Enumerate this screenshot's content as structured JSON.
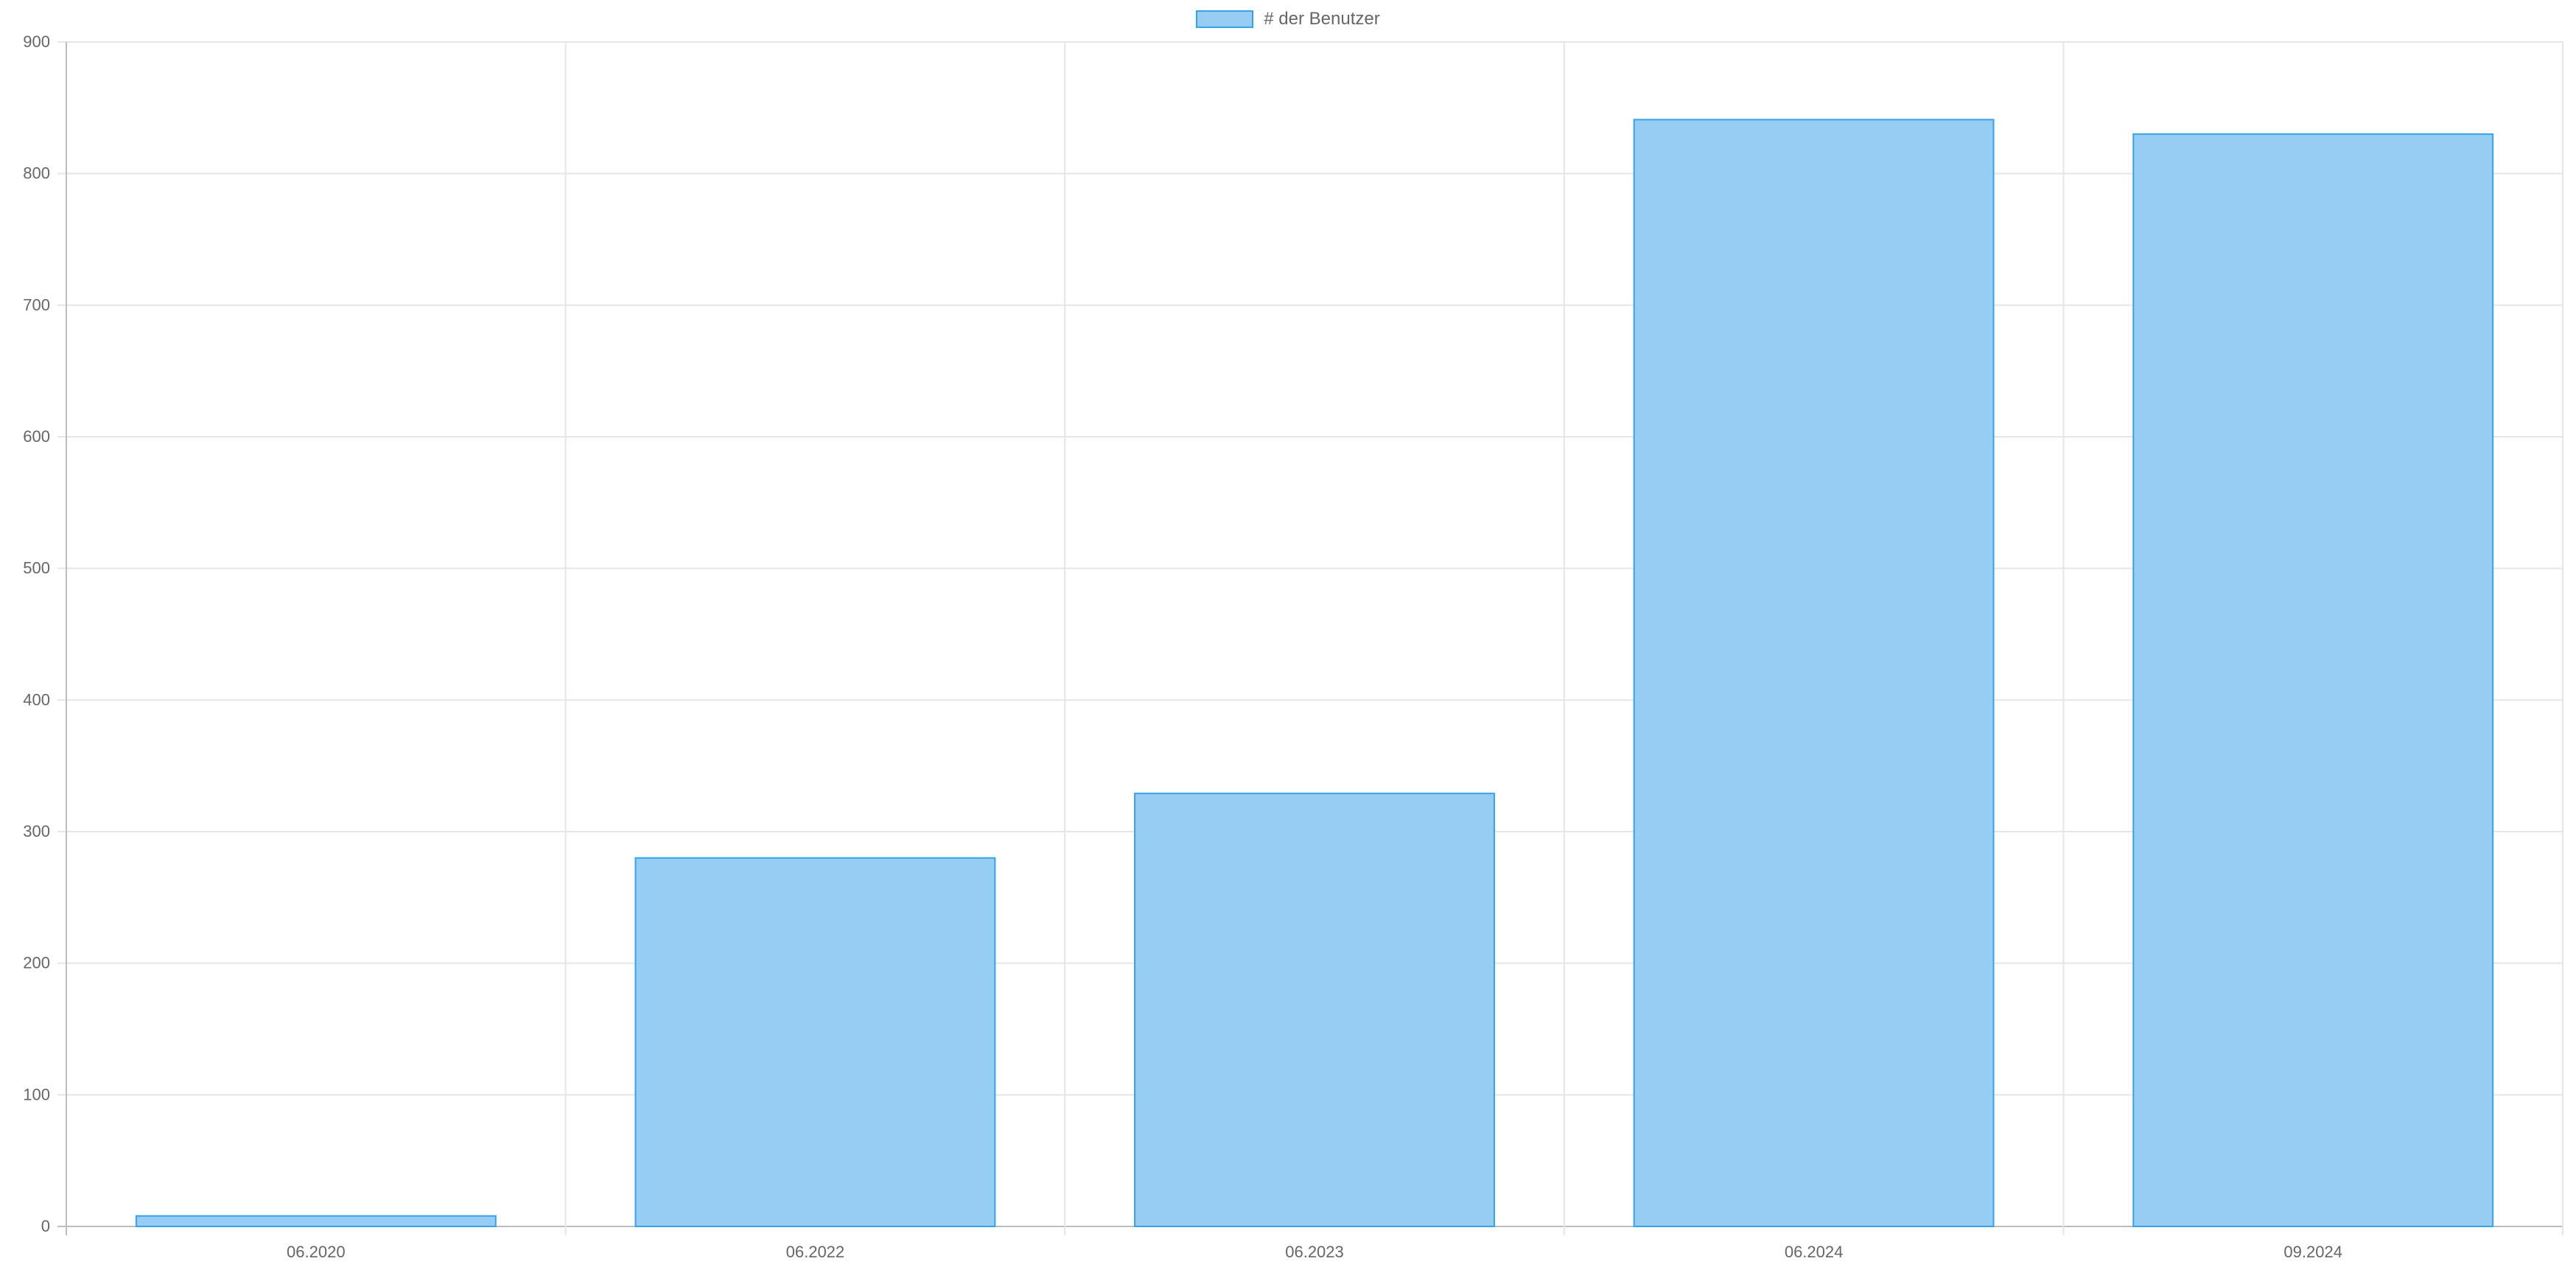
{
  "chart_data": {
    "type": "bar",
    "categories": [
      "06.2020",
      "06.2022",
      "06.2023",
      "06.2024",
      "09.2024"
    ],
    "series": [
      {
        "name": "# der Benutzer",
        "values": [
          8,
          280,
          329,
          841,
          830
        ]
      }
    ],
    "title": "",
    "xlabel": "",
    "ylabel": "",
    "ylim": [
      0,
      900
    ],
    "yticks": [
      "0",
      "100",
      "200",
      "300",
      "400",
      "500",
      "600",
      "700",
      "800",
      "900"
    ],
    "grid": true,
    "legend": "top-center",
    "colors": {
      "bar_fill": "#97cdf3",
      "bar_border": "#36a2eb",
      "grid": "#e5e5e5",
      "axis": "#bdbdbd",
      "text": "#666666"
    }
  }
}
